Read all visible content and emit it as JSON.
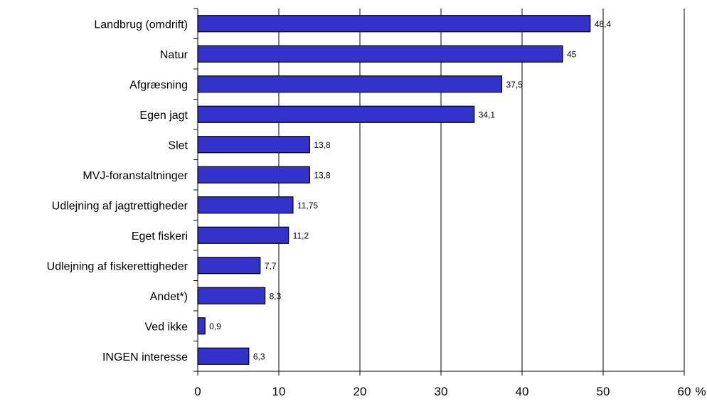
{
  "chart_data": {
    "type": "bar",
    "orientation": "horizontal",
    "categories": [
      "Landbrug (omdrift)",
      "Natur",
      "Afgræsning",
      "Egen jagt",
      "Slet",
      "MVJ-foranstaltninger",
      "Udlejning af jagtrettigheder",
      "Eget fiskeri",
      "Udlejning af fiskerettigheder",
      "Andet*)",
      "Ved ikke",
      "INGEN interesse"
    ],
    "values": [
      48.4,
      45,
      37.5,
      34.1,
      13.8,
      13.8,
      11.75,
      11.2,
      7.7,
      8.3,
      0.9,
      6.3
    ],
    "value_labels": [
      "48,4",
      "45",
      "37,5",
      "34,1",
      "13,8",
      "13,8",
      "11,75",
      "11,2",
      "7,7",
      "8,3",
      "0,9",
      "6,3"
    ],
    "xlim": [
      0,
      60
    ],
    "xticks": [
      0,
      10,
      20,
      30,
      40,
      50,
      60
    ],
    "x_unit": "%",
    "grid": "vertical",
    "legend": "none",
    "colors": {
      "bar_fill": "#3333cc",
      "bar_stroke": "#000000",
      "grid": "#000000"
    }
  }
}
